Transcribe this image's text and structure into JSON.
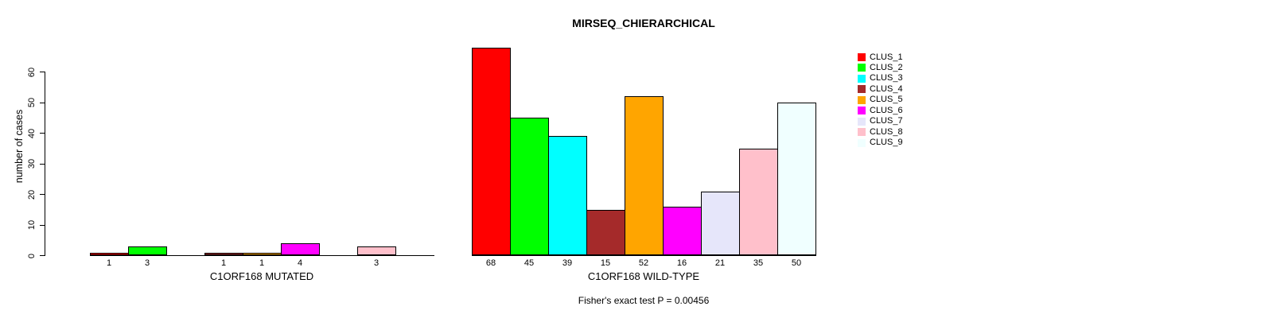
{
  "title": "MIRSEQ_CHIERARCHICAL",
  "footnote": "Fisher's exact test P = 0.00456",
  "y_axis": {
    "label": "number of cases",
    "ticks": [
      0,
      10,
      20,
      30,
      40,
      50,
      60
    ]
  },
  "legend": {
    "position": "top-right-outside",
    "entries": [
      {
        "label": "CLUS_1",
        "color": "#FF0000"
      },
      {
        "label": "CLUS_2",
        "color": "#00FF00"
      },
      {
        "label": "CLUS_3",
        "color": "#00FFFF"
      },
      {
        "label": "CLUS_4",
        "color": "#A52A2A"
      },
      {
        "label": "CLUS_5",
        "color": "#FFA500"
      },
      {
        "label": "CLUS_6",
        "color": "#FF00FF"
      },
      {
        "label": "CLUS_7",
        "color": "#E6E6FA"
      },
      {
        "label": "CLUS_8",
        "color": "#FFC0CB"
      },
      {
        "label": "CLUS_9",
        "color": "#F0FFFF"
      }
    ]
  },
  "chart_data": [
    {
      "type": "bar",
      "panel": "left",
      "xlabel": "C1ORF168 MUTATED",
      "ylabel": "number of cases",
      "categories": [
        "CLUS_1",
        "CLUS_2",
        "CLUS_3",
        "CLUS_4",
        "CLUS_5",
        "CLUS_6",
        "CLUS_7",
        "CLUS_8",
        "CLUS_9"
      ],
      "values": [
        1,
        3,
        0,
        1,
        1,
        4,
        0,
        3,
        0
      ],
      "bar_value_labels": [
        "1",
        "3",
        "",
        "1",
        "1",
        "4",
        "",
        "3",
        ""
      ],
      "colors": [
        "#FF0000",
        "#00FF00",
        "#00FFFF",
        "#A52A2A",
        "#FFA500",
        "#FF00FF",
        "#E6E6FA",
        "#FFC0CB",
        "#F0FFFF"
      ],
      "ylim": [
        0,
        60
      ],
      "grid": false,
      "bar_border_color": "#000000"
    },
    {
      "type": "bar",
      "panel": "right",
      "xlabel": "C1ORF168 WILD-TYPE",
      "ylabel": "",
      "categories": [
        "CLUS_1",
        "CLUS_2",
        "CLUS_3",
        "CLUS_4",
        "CLUS_5",
        "CLUS_6",
        "CLUS_7",
        "CLUS_8",
        "CLUS_9"
      ],
      "values": [
        68,
        45,
        39,
        15,
        52,
        16,
        21,
        35,
        50
      ],
      "bar_value_labels": [
        "68",
        "45",
        "39",
        "15",
        "52",
        "16",
        "21",
        "35",
        "50"
      ],
      "colors": [
        "#FF0000",
        "#00FF00",
        "#00FFFF",
        "#A52A2A",
        "#FFA500",
        "#FF00FF",
        "#E6E6FA",
        "#FFC0CB",
        "#F0FFFF"
      ],
      "ylim": [
        0,
        60
      ],
      "grid": false,
      "bar_border_color": "#000000"
    }
  ]
}
